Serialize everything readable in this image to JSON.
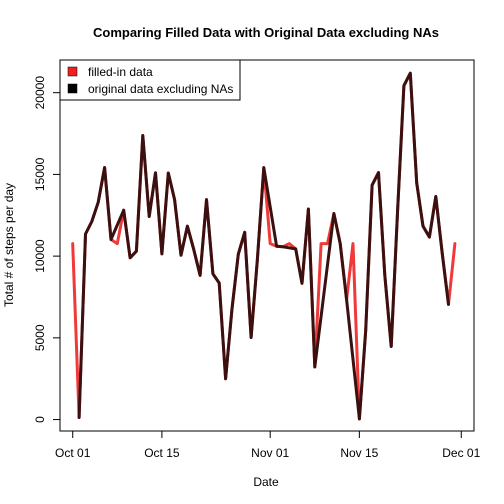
{
  "chart_data": {
    "type": "line",
    "title": "Comparing Filled Data with Original Data excluding NAs",
    "xlabel": "Date",
    "ylabel": "Total # of steps per day",
    "xlim": [
      "2012-09-29",
      "2012-12-03"
    ],
    "ylim": [
      -700,
      22000
    ],
    "x_ticks": [
      {
        "date": "2012-10-01",
        "label": "Oct 01"
      },
      {
        "date": "2012-10-15",
        "label": "Oct 15"
      },
      {
        "date": "2012-11-01",
        "label": "Nov 01"
      },
      {
        "date": "2012-11-15",
        "label": "Nov 15"
      },
      {
        "date": "2012-12-01",
        "label": "Dec 01"
      }
    ],
    "y_ticks": [
      0,
      5000,
      10000,
      15000,
      20000
    ],
    "legend": {
      "position": "top-left",
      "entries": [
        {
          "label": "filled-in data",
          "color": "#ee2020"
        },
        {
          "label": "original data excluding NAs",
          "color": "#000000"
        }
      ]
    },
    "series": [
      {
        "name": "filled-in data",
        "color": "#f03a3a",
        "points": [
          [
            "2012-10-01",
            10766
          ],
          [
            "2012-10-02",
            126
          ],
          [
            "2012-10-03",
            11352
          ],
          [
            "2012-10-04",
            12116
          ],
          [
            "2012-10-05",
            13294
          ],
          [
            "2012-10-06",
            15420
          ],
          [
            "2012-10-07",
            11015
          ],
          [
            "2012-10-08",
            10766
          ],
          [
            "2012-10-09",
            12811
          ],
          [
            "2012-10-10",
            9900
          ],
          [
            "2012-10-11",
            10304
          ],
          [
            "2012-10-12",
            17382
          ],
          [
            "2012-10-13",
            12426
          ],
          [
            "2012-10-14",
            15098
          ],
          [
            "2012-10-15",
            10139
          ],
          [
            "2012-10-16",
            15084
          ],
          [
            "2012-10-17",
            13452
          ],
          [
            "2012-10-18",
            10056
          ],
          [
            "2012-10-19",
            11829
          ],
          [
            "2012-10-20",
            10395
          ],
          [
            "2012-10-21",
            8821
          ],
          [
            "2012-10-22",
            13460
          ],
          [
            "2012-10-23",
            8918
          ],
          [
            "2012-10-24",
            8355
          ],
          [
            "2012-10-25",
            2492
          ],
          [
            "2012-10-26",
            6778
          ],
          [
            "2012-10-27",
            10119
          ],
          [
            "2012-10-28",
            11458
          ],
          [
            "2012-10-29",
            5018
          ],
          [
            "2012-10-30",
            9819
          ],
          [
            "2012-10-31",
            15414
          ],
          [
            "2012-11-01",
            10766
          ],
          [
            "2012-11-02",
            10600
          ],
          [
            "2012-11-03",
            10571
          ],
          [
            "2012-11-04",
            10766
          ],
          [
            "2012-11-05",
            10439
          ],
          [
            "2012-11-06",
            8334
          ],
          [
            "2012-11-07",
            12883
          ],
          [
            "2012-11-08",
            3219
          ],
          [
            "2012-11-09",
            10766
          ],
          [
            "2012-11-10",
            10766
          ],
          [
            "2012-11-11",
            12608
          ],
          [
            "2012-11-12",
            10765
          ],
          [
            "2012-11-13",
            7336
          ],
          [
            "2012-11-14",
            10766
          ],
          [
            "2012-11-15",
            41
          ],
          [
            "2012-11-16",
            5441
          ],
          [
            "2012-11-17",
            14339
          ],
          [
            "2012-11-18",
            15110
          ],
          [
            "2012-11-19",
            8841
          ],
          [
            "2012-11-20",
            4472
          ],
          [
            "2012-11-21",
            12787
          ],
          [
            "2012-11-22",
            20427
          ],
          [
            "2012-11-23",
            21194
          ],
          [
            "2012-11-24",
            14478
          ],
          [
            "2012-11-25",
            11834
          ],
          [
            "2012-11-26",
            11162
          ],
          [
            "2012-11-27",
            13646
          ],
          [
            "2012-11-28",
            10183
          ],
          [
            "2012-11-29",
            7047
          ],
          [
            "2012-11-30",
            10766
          ]
        ]
      },
      {
        "name": "original data excluding NAs",
        "color": "#3a1010",
        "points": [
          [
            "2012-10-02",
            126
          ],
          [
            "2012-10-03",
            11352
          ],
          [
            "2012-10-04",
            12116
          ],
          [
            "2012-10-05",
            13294
          ],
          [
            "2012-10-06",
            15420
          ],
          [
            "2012-10-07",
            11015
          ],
          [
            "2012-10-09",
            12811
          ],
          [
            "2012-10-10",
            9900
          ],
          [
            "2012-10-11",
            10304
          ],
          [
            "2012-10-12",
            17382
          ],
          [
            "2012-10-13",
            12426
          ],
          [
            "2012-10-14",
            15098
          ],
          [
            "2012-10-15",
            10139
          ],
          [
            "2012-10-16",
            15084
          ],
          [
            "2012-10-17",
            13452
          ],
          [
            "2012-10-18",
            10056
          ],
          [
            "2012-10-19",
            11829
          ],
          [
            "2012-10-20",
            10395
          ],
          [
            "2012-10-21",
            8821
          ],
          [
            "2012-10-22",
            13460
          ],
          [
            "2012-10-23",
            8918
          ],
          [
            "2012-10-24",
            8355
          ],
          [
            "2012-10-25",
            2492
          ],
          [
            "2012-10-26",
            6778
          ],
          [
            "2012-10-27",
            10119
          ],
          [
            "2012-10-28",
            11458
          ],
          [
            "2012-10-29",
            5018
          ],
          [
            "2012-10-30",
            9819
          ],
          [
            "2012-10-31",
            15414
          ],
          [
            "2012-11-02",
            10600
          ],
          [
            "2012-11-03",
            10571
          ],
          [
            "2012-11-05",
            10439
          ],
          [
            "2012-11-06",
            8334
          ],
          [
            "2012-11-07",
            12883
          ],
          [
            "2012-11-08",
            3219
          ],
          [
            "2012-11-11",
            12608
          ],
          [
            "2012-11-12",
            10765
          ],
          [
            "2012-11-13",
            7336
          ],
          [
            "2012-11-15",
            41
          ],
          [
            "2012-11-16",
            5441
          ],
          [
            "2012-11-17",
            14339
          ],
          [
            "2012-11-18",
            15110
          ],
          [
            "2012-11-19",
            8841
          ],
          [
            "2012-11-20",
            4472
          ],
          [
            "2012-11-21",
            12787
          ],
          [
            "2012-11-22",
            20427
          ],
          [
            "2012-11-23",
            21194
          ],
          [
            "2012-11-24",
            14478
          ],
          [
            "2012-11-25",
            11834
          ],
          [
            "2012-11-26",
            11162
          ],
          [
            "2012-11-27",
            13646
          ],
          [
            "2012-11-28",
            10183
          ],
          [
            "2012-11-29",
            7047
          ]
        ]
      }
    ]
  }
}
